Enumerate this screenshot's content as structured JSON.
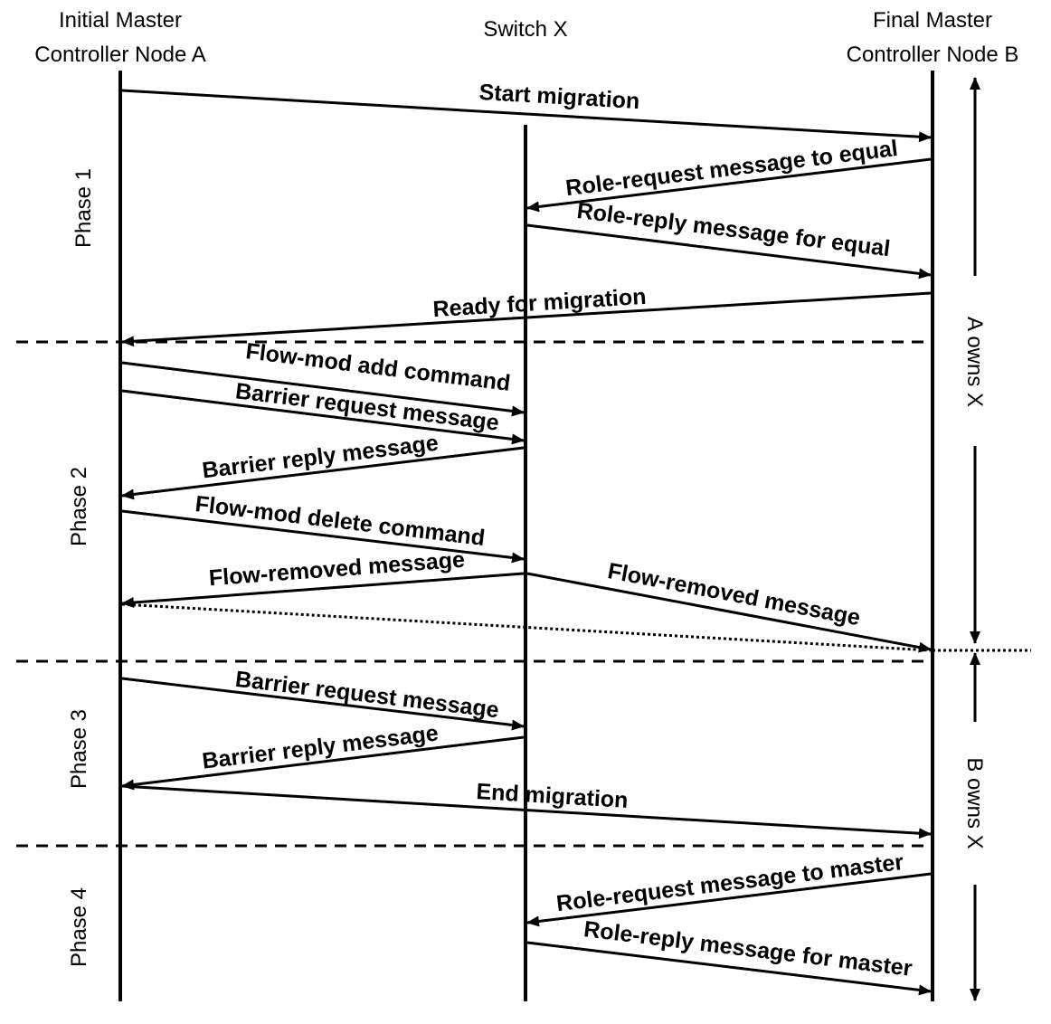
{
  "participants": {
    "a": {
      "line1": "Initial Master",
      "line2": "Controller Node A"
    },
    "x": {
      "line1": "Switch X"
    },
    "b": {
      "line1": "Final Master",
      "line2": "Controller Node B"
    }
  },
  "phases": [
    "Phase 1",
    "Phase 2",
    "Phase 3",
    "Phase 4"
  ],
  "ownership": {
    "a_owns": "A owns X",
    "b_owns": "B owns X"
  },
  "messages": {
    "start_migration": "Start migration",
    "role_request_equal": "Role-request message to equal",
    "role_reply_equal": "Role-reply message for equal",
    "ready_for_migration": "Ready for migration",
    "flow_mod_add": "Flow-mod add command",
    "barrier_request_1": "Barrier request message",
    "barrier_reply_1": "Barrier reply message",
    "flow_mod_delete": "Flow-mod delete command",
    "flow_removed_to_a": "Flow-removed message",
    "flow_removed_to_b": "Flow-removed message",
    "barrier_request_2": "Barrier request message",
    "barrier_reply_2": "Barrier reply message",
    "end_migration": "End migration",
    "role_request_master": "Role-request message to master",
    "role_reply_master": "Role-reply message for master"
  }
}
